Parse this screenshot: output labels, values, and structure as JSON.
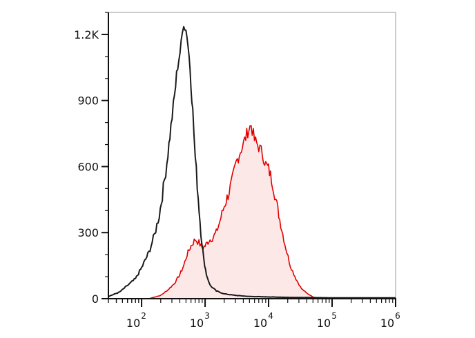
{
  "chart_data": {
    "type": "area",
    "xscale": "log",
    "xlim": [
      30,
      1000000
    ],
    "ylim": [
      0,
      1300
    ],
    "grid": false,
    "legend": "none",
    "y_ticks": [
      {
        "value": 0,
        "label": "0"
      },
      {
        "value": 300,
        "label": "300"
      },
      {
        "value": 600,
        "label": "600"
      },
      {
        "value": 900,
        "label": "900"
      },
      {
        "value": 1200,
        "label": "1.2K"
      }
    ],
    "x_ticks": [
      {
        "value": 100,
        "base": "10",
        "exp": "2"
      },
      {
        "value": 1000,
        "base": "10",
        "exp": "3"
      },
      {
        "value": 10000,
        "base": "10",
        "exp": "4"
      },
      {
        "value": 100000,
        "base": "10",
        "exp": "5"
      },
      {
        "value": 1000000,
        "base": "10",
        "exp": "6"
      }
    ],
    "series": [
      {
        "color": "#1a1a1a",
        "fill": "none",
        "x": [
          30,
          45,
          60,
          80,
          100,
          130,
          160,
          190,
          220,
          250,
          290,
          330,
          370,
          420,
          460,
          520,
          580,
          640,
          700,
          780,
          860,
          950,
          1050,
          1200,
          1500,
          2000,
          3000,
          5000,
          10000,
          20000,
          50000,
          100000,
          1000000
        ],
        "y": [
          10,
          30,
          60,
          90,
          140,
          210,
          290,
          380,
          500,
          620,
          780,
          920,
          1060,
          1150,
          1260,
          1200,
          1050,
          850,
          640,
          460,
          300,
          180,
          110,
          60,
          35,
          22,
          15,
          10,
          8,
          6,
          5,
          4,
          4
        ]
      },
      {
        "color": "#e00000",
        "fill": "#fde8e8",
        "x": [
          130,
          200,
          260,
          330,
          400,
          460,
          520,
          600,
          700,
          800,
          900,
          1000,
          1150,
          1300,
          1500,
          1700,
          2000,
          2300,
          2700,
          3100,
          3600,
          4200,
          4700,
          5300,
          6000,
          7000,
          8000,
          9000,
          10000,
          11500,
          13000,
          15000,
          18000,
          22000,
          27000,
          33000,
          40000,
          50000,
          60000
        ],
        "y": [
          0,
          15,
          40,
          70,
          110,
          150,
          200,
          240,
          270,
          255,
          230,
          240,
          265,
          275,
          300,
          350,
          420,
          470,
          540,
          620,
          670,
          720,
          760,
          790,
          720,
          690,
          660,
          610,
          590,
          530,
          450,
          360,
          250,
          150,
          90,
          45,
          25,
          8,
          0
        ]
      }
    ]
  }
}
